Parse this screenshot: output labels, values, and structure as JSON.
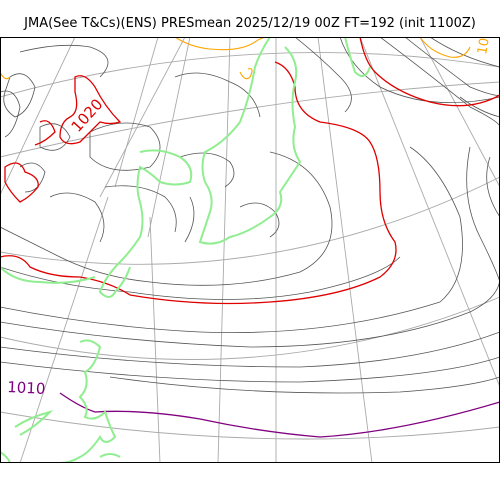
{
  "header": {
    "title": "JMA(See T&Cs)(ENS) PRESmean 2025/12/19 00Z FT=192 (init 1100Z)"
  },
  "map": {
    "contour_labels": {
      "red_1020": "1020",
      "purple_1010": "1010",
      "orange_edge": "10"
    },
    "colors": {
      "isobar_default": "#555555",
      "isobar_1020": "#e00000",
      "isobar_1010": "#800080",
      "isobar_high": "#ffa500",
      "coastline": "#90ee90",
      "graticule": "#aaaaaa"
    }
  }
}
